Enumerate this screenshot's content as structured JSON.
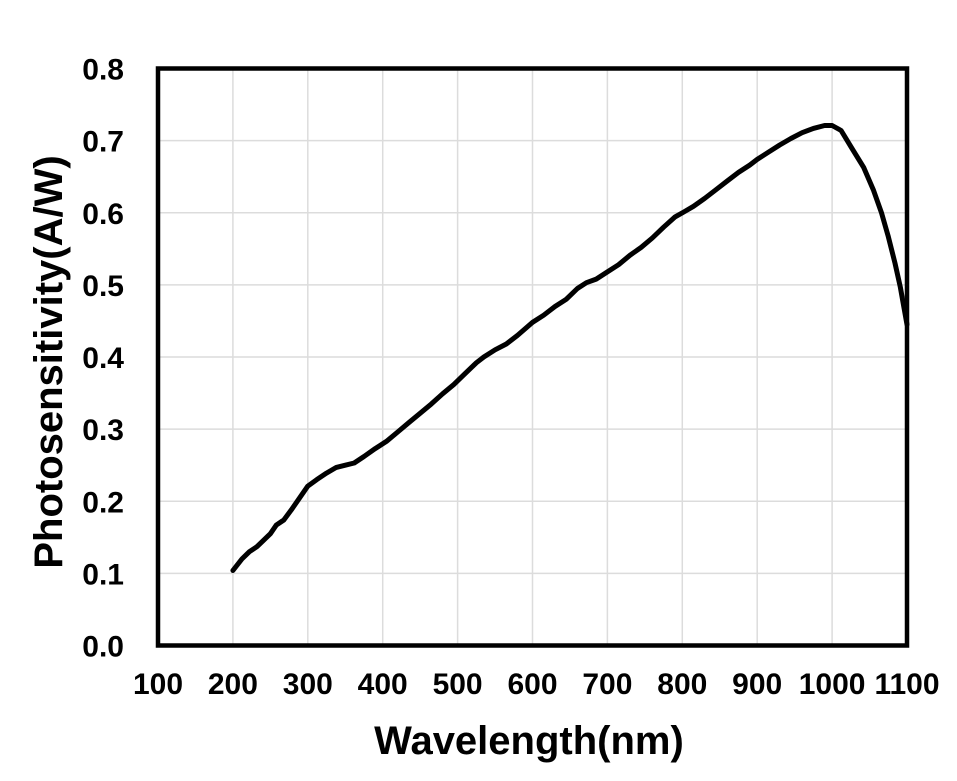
{
  "chart_data": {
    "type": "line",
    "title": "",
    "xlabel": "Wavelength(nm)",
    "ylabel": "Photosensitivity(A/W)",
    "xlim": [
      100,
      1100
    ],
    "ylim": [
      0,
      0.8
    ],
    "xticks": [
      100,
      200,
      300,
      400,
      500,
      600,
      700,
      800,
      900,
      1000,
      1100
    ],
    "yticks": [
      0,
      0.1,
      0.2,
      0.3,
      0.4,
      0.5,
      0.6,
      0.7,
      0.8
    ],
    "grid": true,
    "legend_position": "none",
    "series": [
      {
        "name": "Photosensitivity",
        "color": "#000000",
        "points": [
          [
            200,
            0.104
          ],
          [
            212,
            0.12
          ],
          [
            222,
            0.13
          ],
          [
            232,
            0.137
          ],
          [
            240,
            0.145
          ],
          [
            250,
            0.155
          ],
          [
            258,
            0.167
          ],
          [
            268,
            0.174
          ],
          [
            278,
            0.188
          ],
          [
            288,
            0.203
          ],
          [
            300,
            0.221
          ],
          [
            312,
            0.23
          ],
          [
            325,
            0.239
          ],
          [
            338,
            0.247
          ],
          [
            350,
            0.25
          ],
          [
            362,
            0.253
          ],
          [
            375,
            0.262
          ],
          [
            390,
            0.273
          ],
          [
            405,
            0.283
          ],
          [
            420,
            0.296
          ],
          [
            435,
            0.309
          ],
          [
            450,
            0.322
          ],
          [
            465,
            0.335
          ],
          [
            480,
            0.349
          ],
          [
            495,
            0.362
          ],
          [
            510,
            0.377
          ],
          [
            525,
            0.392
          ],
          [
            535,
            0.4
          ],
          [
            550,
            0.41
          ],
          [
            565,
            0.418
          ],
          [
            580,
            0.43
          ],
          [
            600,
            0.448
          ],
          [
            615,
            0.458
          ],
          [
            630,
            0.47
          ],
          [
            645,
            0.48
          ],
          [
            660,
            0.495
          ],
          [
            672,
            0.503
          ],
          [
            685,
            0.508
          ],
          [
            700,
            0.518
          ],
          [
            715,
            0.528
          ],
          [
            730,
            0.541
          ],
          [
            745,
            0.552
          ],
          [
            760,
            0.565
          ],
          [
            775,
            0.58
          ],
          [
            790,
            0.594
          ],
          [
            802,
            0.601
          ],
          [
            815,
            0.609
          ],
          [
            830,
            0.62
          ],
          [
            845,
            0.632
          ],
          [
            860,
            0.644
          ],
          [
            875,
            0.656
          ],
          [
            890,
            0.666
          ],
          [
            900,
            0.674
          ],
          [
            915,
            0.684
          ],
          [
            930,
            0.694
          ],
          [
            945,
            0.703
          ],
          [
            960,
            0.711
          ],
          [
            975,
            0.717
          ],
          [
            990,
            0.721
          ],
          [
            1000,
            0.721
          ],
          [
            1012,
            0.714
          ],
          [
            1026,
            0.69
          ],
          [
            1042,
            0.663
          ],
          [
            1055,
            0.632
          ],
          [
            1066,
            0.6
          ],
          [
            1075,
            0.567
          ],
          [
            1084,
            0.53
          ],
          [
            1091,
            0.497
          ],
          [
            1100,
            0.445
          ]
        ]
      }
    ]
  },
  "colors": {
    "background": "#ffffff",
    "grid": "#dcdcdc",
    "axis": "#000000",
    "text": "#000000",
    "curve": "#000000"
  }
}
